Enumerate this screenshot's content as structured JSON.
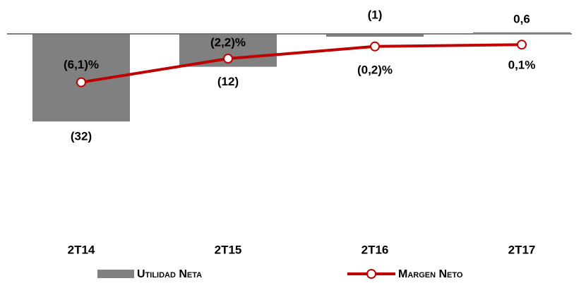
{
  "chart_data": {
    "type": "bar_line",
    "categories": [
      "2T14",
      "2T15",
      "2T16",
      "2T17"
    ],
    "series": [
      {
        "name": "Utilidad Neta",
        "type": "bar",
        "color": "#808080",
        "values": [
          -32,
          -12,
          -1,
          0.6
        ],
        "value_labels": [
          "(32)",
          "(12)",
          "(1)",
          "0,6"
        ]
      },
      {
        "name": "Margen Neto",
        "type": "line",
        "axis": "y2",
        "color": "#c00000",
        "values": [
          -6.1,
          -2.2,
          -0.2,
          0.1
        ],
        "value_labels": [
          "(6,1)%",
          "(2,2)%",
          "(0,2)%",
          "0,1%"
        ]
      }
    ],
    "ylim": [
      -73,
      7
    ],
    "y2lim": [
      -31,
      5
    ]
  }
}
